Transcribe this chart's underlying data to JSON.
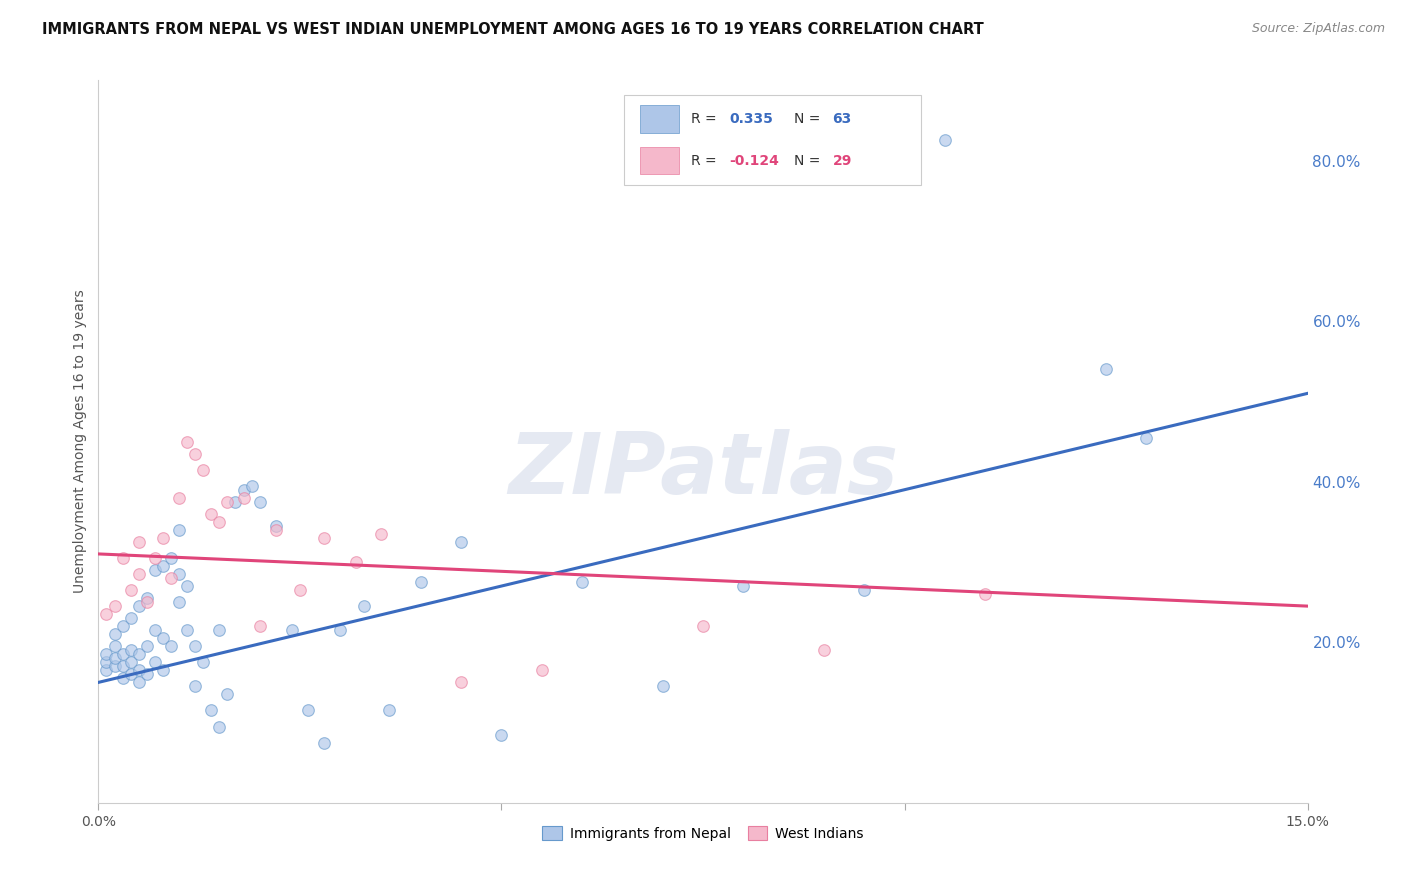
{
  "title": "IMMIGRANTS FROM NEPAL VS WEST INDIAN UNEMPLOYMENT AMONG AGES 16 TO 19 YEARS CORRELATION CHART",
  "source": "Source: ZipAtlas.com",
  "ylabel": "Unemployment Among Ages 16 to 19 years",
  "xlim": [
    0.0,
    0.15
  ],
  "ylim": [
    0.0,
    0.9
  ],
  "watermark_text": "ZIPatlas",
  "nepal_scatter_x": [
    0.001,
    0.001,
    0.001,
    0.002,
    0.002,
    0.002,
    0.002,
    0.003,
    0.003,
    0.003,
    0.003,
    0.004,
    0.004,
    0.004,
    0.004,
    0.005,
    0.005,
    0.005,
    0.005,
    0.006,
    0.006,
    0.006,
    0.007,
    0.007,
    0.007,
    0.008,
    0.008,
    0.008,
    0.009,
    0.009,
    0.01,
    0.01,
    0.01,
    0.011,
    0.011,
    0.012,
    0.012,
    0.013,
    0.014,
    0.015,
    0.015,
    0.016,
    0.017,
    0.018,
    0.019,
    0.02,
    0.022,
    0.024,
    0.026,
    0.028,
    0.03,
    0.033,
    0.036,
    0.04,
    0.045,
    0.05,
    0.06,
    0.07,
    0.08,
    0.095,
    0.105,
    0.125,
    0.13
  ],
  "nepal_scatter_y": [
    0.165,
    0.175,
    0.185,
    0.17,
    0.18,
    0.195,
    0.21,
    0.155,
    0.17,
    0.185,
    0.22,
    0.16,
    0.175,
    0.19,
    0.23,
    0.15,
    0.165,
    0.185,
    0.245,
    0.16,
    0.195,
    0.255,
    0.175,
    0.215,
    0.29,
    0.165,
    0.205,
    0.295,
    0.195,
    0.305,
    0.25,
    0.285,
    0.34,
    0.215,
    0.27,
    0.145,
    0.195,
    0.175,
    0.115,
    0.095,
    0.215,
    0.135,
    0.375,
    0.39,
    0.395,
    0.375,
    0.345,
    0.215,
    0.115,
    0.075,
    0.215,
    0.245,
    0.115,
    0.275,
    0.325,
    0.085,
    0.275,
    0.145,
    0.27,
    0.265,
    0.825,
    0.54,
    0.455
  ],
  "west_scatter_x": [
    0.001,
    0.002,
    0.003,
    0.004,
    0.005,
    0.005,
    0.006,
    0.007,
    0.008,
    0.009,
    0.01,
    0.011,
    0.012,
    0.013,
    0.014,
    0.015,
    0.016,
    0.018,
    0.02,
    0.022,
    0.025,
    0.028,
    0.032,
    0.035,
    0.045,
    0.055,
    0.075,
    0.09,
    0.11
  ],
  "west_scatter_y": [
    0.235,
    0.245,
    0.305,
    0.265,
    0.285,
    0.325,
    0.25,
    0.305,
    0.33,
    0.28,
    0.38,
    0.45,
    0.435,
    0.415,
    0.36,
    0.35,
    0.375,
    0.38,
    0.22,
    0.34,
    0.265,
    0.33,
    0.3,
    0.335,
    0.15,
    0.165,
    0.22,
    0.19,
    0.26
  ],
  "nepal_line_x": [
    0.0,
    0.15
  ],
  "nepal_line_y": [
    0.15,
    0.51
  ],
  "west_line_x": [
    0.0,
    0.15
  ],
  "west_line_y": [
    0.31,
    0.245
  ],
  "scatter_alpha": 0.65,
  "scatter_size": 70,
  "nepal_face_color": "#aec6e8",
  "nepal_edge_color": "#6699cc",
  "west_face_color": "#f5b8cb",
  "west_edge_color": "#e87fa0",
  "line_nepal_color": "#3a6bbf",
  "line_west_color": "#e0457a",
  "background_color": "#ffffff",
  "grid_color": "#cccccc",
  "right_axis_color": "#4a7cc9",
  "title_fontsize": 10.5,
  "source_fontsize": 9,
  "ytick_vals": [
    0.2,
    0.4,
    0.6,
    0.8
  ],
  "ytick_labels": [
    "20.0%",
    "40.0%",
    "60.0%",
    "80.0%"
  ],
  "xtick_vals": [
    0.0,
    0.15
  ],
  "xtick_labels": [
    "0.0%",
    "15.0%"
  ],
  "legend_R1": "0.335",
  "legend_N1": "63",
  "legend_R2": "-0.124",
  "legend_N2": "29",
  "legend_label1": "Immigrants from Nepal",
  "legend_label2": "West Indians"
}
